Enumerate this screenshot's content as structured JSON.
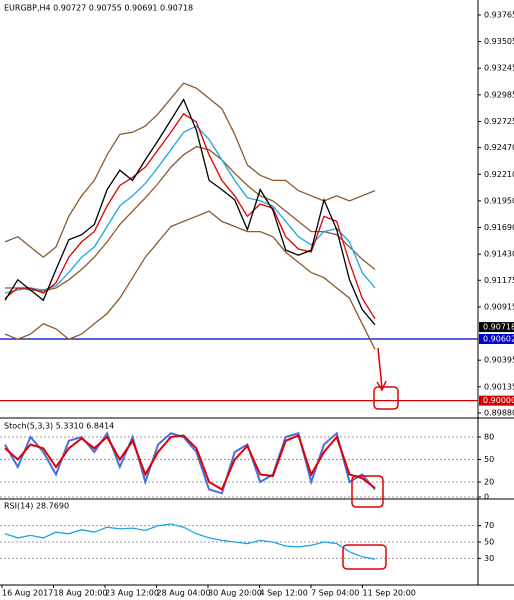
{
  "chart_data": [
    {
      "type": "line",
      "title": "EURGBP,H4  0.90727 0.90755 0.90691 0.90718",
      "ylim": [
        0.8986,
        0.93911
      ],
      "grid": false,
      "yticks": [
        0.93765,
        0.93505,
        0.93245,
        0.92985,
        0.92725,
        {
          "value": 0.9247,
          "label": "0.92470"
        },
        {
          "value": 0.9221,
          "label": "0.92210"
        },
        {
          "value": 0.9195,
          "label": "0.91950"
        },
        {
          "value": 0.9169,
          "label": "0.91690"
        },
        {
          "value": 0.9143,
          "label": "0.91430"
        },
        0.91175,
        0.90915,
        0.90395,
        0.90135,
        {
          "value": 0.8988,
          "label": "0.89880"
        }
      ],
      "current_price": {
        "value": 0.90718,
        "label": "0.90718"
      },
      "hlines": [
        {
          "value": 0.90602,
          "label": "0.90602",
          "color": "#0000c8"
        },
        {
          "value": 0.9,
          "label": "0.90000",
          "color": "#d40000"
        }
      ],
      "series": [
        {
          "color": "#8b5a2b",
          "values": [
            0.9155,
            0.916,
            0.915,
            0.914,
            0.915,
            0.918,
            0.92,
            0.9215,
            0.924,
            0.926,
            0.9262,
            0.9268,
            0.928,
            0.9295,
            0.931,
            0.9305,
            0.9295,
            0.9285,
            0.926,
            0.923,
            0.922,
            0.9215,
            0.9215,
            0.9205,
            0.92,
            0.9195,
            0.92,
            0.9195,
            0.92,
            0.9205
          ]
        },
        {
          "color": "#8b5a2b",
          "values": [
            0.911,
            0.911,
            0.9108,
            0.9107,
            0.911,
            0.9118,
            0.9128,
            0.914,
            0.9155,
            0.9172,
            0.9185,
            0.9198,
            0.9212,
            0.9228,
            0.924,
            0.9248,
            0.9245,
            0.9235,
            0.9222,
            0.921,
            0.92,
            0.9195,
            0.9185,
            0.9175,
            0.9165,
            0.9165,
            0.9162,
            0.915,
            0.9138,
            0.9128
          ]
        },
        {
          "color": "#8b5a2b",
          "values": [
            0.9065,
            0.906,
            0.9065,
            0.9075,
            0.907,
            0.906,
            0.9065,
            0.9075,
            0.9085,
            0.91,
            0.912,
            0.914,
            0.9155,
            0.917,
            0.9175,
            0.918,
            0.9185,
            0.9175,
            0.917,
            0.9165,
            0.9165,
            0.916,
            0.9145,
            0.9135,
            0.9125,
            0.912,
            0.911,
            0.91,
            0.9075,
            0.905
          ]
        },
        {
          "color": "#1ea7e1",
          "values": [
            0.9105,
            0.9108,
            0.911,
            0.9108,
            0.9112,
            0.9125,
            0.914,
            0.915,
            0.917,
            0.919,
            0.92,
            0.9212,
            0.9228,
            0.9245,
            0.9262,
            0.9268,
            0.9255,
            0.9235,
            0.9215,
            0.9198,
            0.9195,
            0.919,
            0.9175,
            0.916,
            0.9152,
            0.9165,
            0.9168,
            0.9155,
            0.9125,
            0.911
          ]
        },
        {
          "color": "#e00000",
          "values": [
            0.91,
            0.911,
            0.911,
            0.9105,
            0.9115,
            0.914,
            0.9155,
            0.9165,
            0.919,
            0.921,
            0.9218,
            0.9228,
            0.9245,
            0.9262,
            0.928,
            0.9272,
            0.924,
            0.9215,
            0.92,
            0.918,
            0.9192,
            0.9188,
            0.916,
            0.9148,
            0.9145,
            0.918,
            0.9175,
            0.9135,
            0.91,
            0.908
          ]
        },
        {
          "color": "#000000",
          "values": [
            0.9098,
            0.9118,
            0.9108,
            0.9098,
            0.9128,
            0.9157,
            0.9162,
            0.9172,
            0.9206,
            0.9225,
            0.9215,
            0.9235,
            0.9254,
            0.9274,
            0.9294,
            0.9264,
            0.9215,
            0.9206,
            0.9196,
            0.9167,
            0.9206,
            0.9186,
            0.9147,
            0.9142,
            0.9147,
            0.9196,
            0.9167,
            0.9118,
            0.9089,
            0.9074
          ]
        }
      ]
    },
    {
      "type": "line",
      "title": "Stoch(5,3,3) 5.3310 6.8414",
      "ylim": [
        0,
        100
      ],
      "yticks": [
        80,
        50,
        20,
        0
      ],
      "grid": true,
      "series": [
        {
          "color": "#4a6fdc",
          "values": [
            70,
            40,
            80,
            60,
            30,
            75,
            80,
            60,
            85,
            40,
            80,
            20,
            70,
            85,
            80,
            60,
            10,
            5,
            60,
            70,
            20,
            30,
            80,
            85,
            20,
            70,
            85,
            20,
            30,
            10
          ]
        },
        {
          "color": "#e00000",
          "values": [
            65,
            50,
            70,
            65,
            40,
            65,
            78,
            65,
            80,
            50,
            75,
            30,
            60,
            80,
            82,
            65,
            20,
            10,
            50,
            68,
            30,
            28,
            75,
            82,
            30,
            60,
            80,
            30,
            25,
            12
          ]
        }
      ]
    },
    {
      "type": "line",
      "title": "RSI(14) 28.7690",
      "ylim": [
        0,
        100
      ],
      "yticks": [
        70,
        50,
        30
      ],
      "grid": true,
      "series": [
        {
          "color": "#1ea7e1",
          "values": [
            60,
            55,
            58,
            55,
            62,
            60,
            65,
            62,
            68,
            66,
            67,
            64,
            70,
            72,
            68,
            60,
            55,
            52,
            50,
            48,
            52,
            50,
            45,
            44,
            46,
            50,
            48,
            38,
            32,
            29
          ]
        }
      ]
    }
  ],
  "time_axis": [
    "16 Aug 2017",
    "18 Aug 20:00",
    "23 Aug 12:00",
    "28 Aug 04:00",
    "30 Aug 20:00",
    "4 Sep 12:00",
    "7 Sep 04:00",
    "11 Sep 20:00"
  ]
}
